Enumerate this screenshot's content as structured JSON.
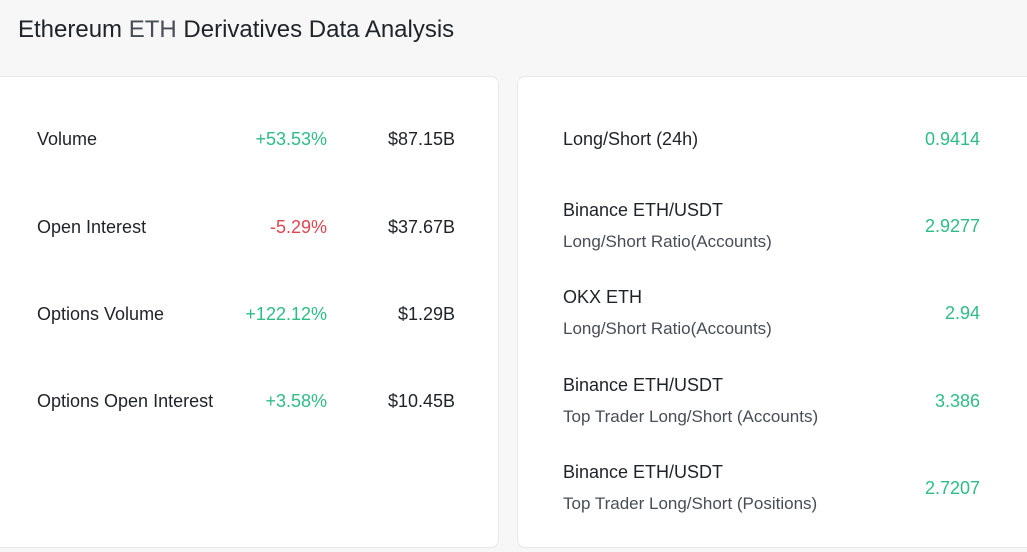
{
  "title": {
    "main_a": "Ethereum",
    "ticker": "ETH",
    "main_b": "Derivatives Data Analysis"
  },
  "colors": {
    "positive": "#2ebd85",
    "negative": "#e0464f",
    "text": "#1e2329",
    "muted": "#474d57"
  },
  "metrics": [
    {
      "name": "Volume",
      "change": "+53.53%",
      "value": "$87.15B"
    },
    {
      "name": "Open Interest",
      "change": "-5.29%",
      "value": "$37.67B"
    },
    {
      "name": "Options Volume",
      "change": "+122.12%",
      "value": "$1.29B"
    },
    {
      "name": "Options Open Interest",
      "change": "+3.58%",
      "value": "$10.45B"
    }
  ],
  "ratios": [
    {
      "name": "Long/Short (24h)",
      "sub": "",
      "value": "0.9414"
    },
    {
      "name": "Binance ETH/USDT",
      "sub": "Long/Short Ratio(Accounts)",
      "value": "2.9277"
    },
    {
      "name": "OKX ETH",
      "sub": "Long/Short Ratio(Accounts)",
      "value": "2.94"
    },
    {
      "name": "Binance ETH/USDT",
      "sub": "Top Trader Long/Short (Accounts)",
      "value": "3.386"
    },
    {
      "name": "Binance ETH/USDT",
      "sub": "Top Trader Long/Short (Positions)",
      "value": "2.7207"
    }
  ]
}
